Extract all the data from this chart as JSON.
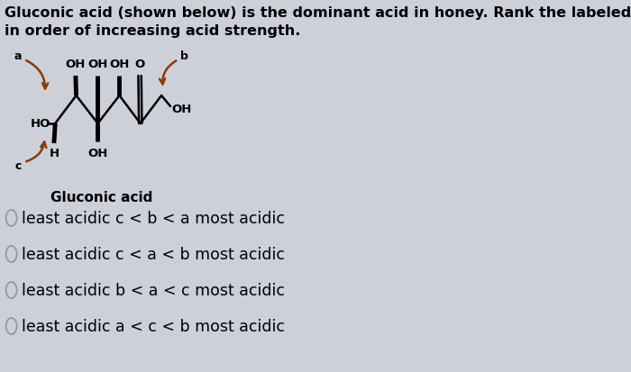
{
  "title_text": "Gluconic acid (shown below) is the dominant acid in honey. Rank the labeled protons\nin order of increasing acid strength.",
  "caption": "Gluconic acid",
  "options": [
    "least acidic c < b < a most acidic",
    "least acidic c < a < b most acidic",
    "least acidic b < a < c most acidic",
    "least acidic a < c < b most acidic"
  ],
  "bg_color": "#cdd0d8",
  "text_color": "#000000",
  "circle_color": "#999999",
  "molecule_line_color": "#000000",
  "molecule_red_color": "#8B3A0A",
  "title_fontsize": 11.5,
  "option_fontsize": 12.5,
  "caption_fontsize": 11
}
